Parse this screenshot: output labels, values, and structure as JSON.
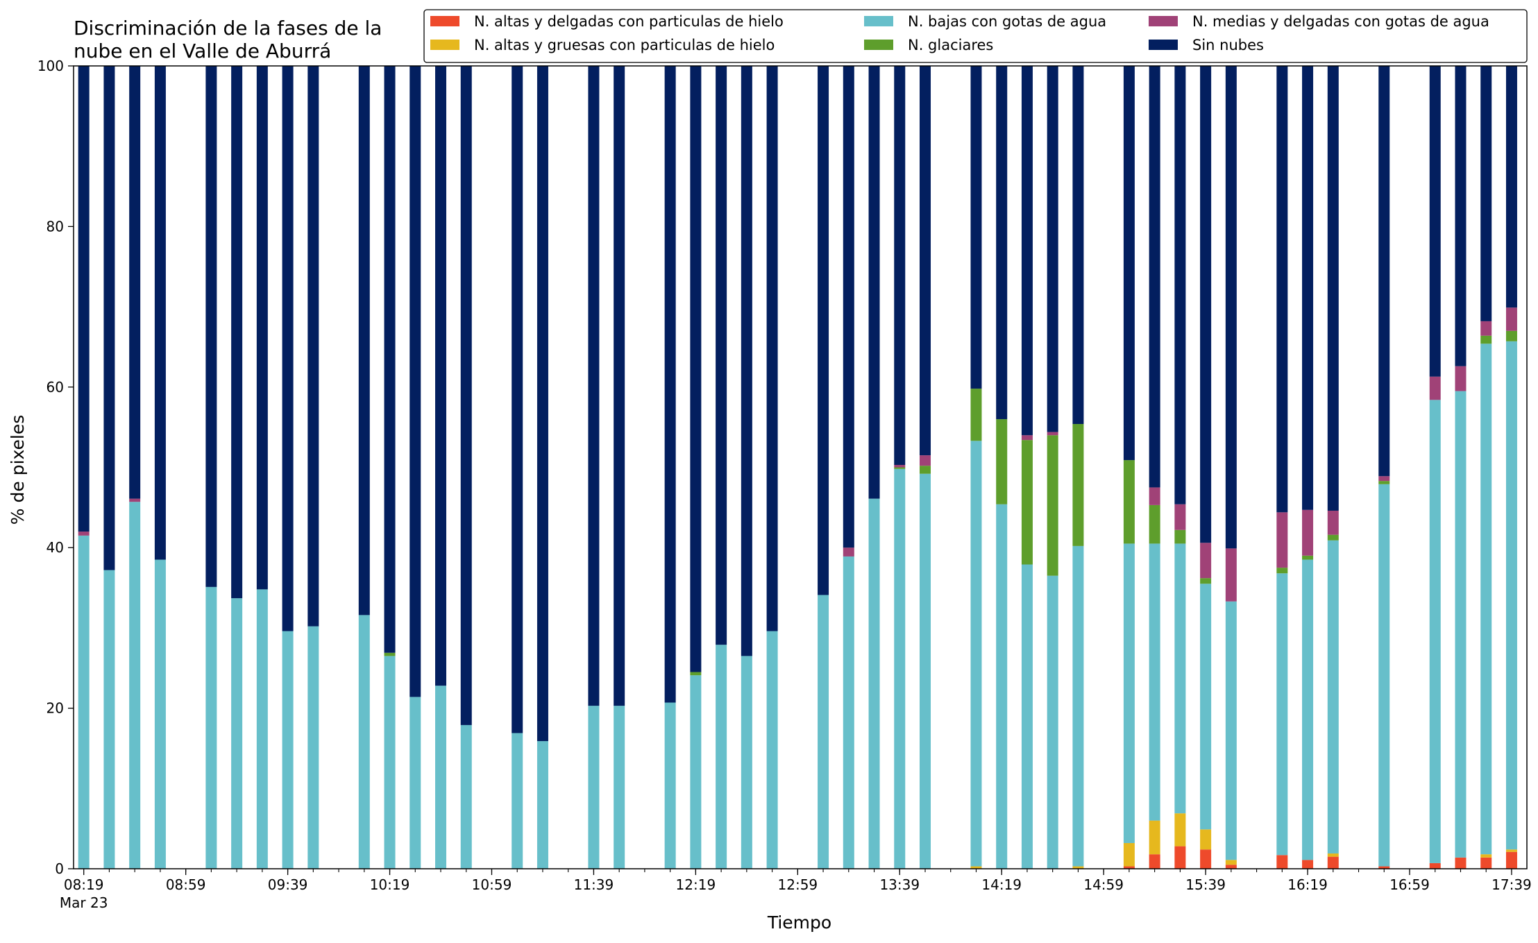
{
  "chart_data": {
    "type": "bar",
    "stacked": true,
    "title_lines": [
      "Discriminación de la fases de la",
      "nube en el Valle de Aburrá"
    ],
    "xlabel": "Tiempo",
    "ylabel": "% de pixeles",
    "ylim": [
      0,
      100
    ],
    "yticks": [
      0,
      20,
      40,
      60,
      80,
      100
    ],
    "grid": false,
    "legend_position": "top-right",
    "x_range_minutes": [
      495,
      1065
    ],
    "xticks": [
      {
        "t": 499,
        "label": "08:19",
        "sublabel": "Mar 23"
      },
      {
        "t": 539,
        "label": "08:59",
        "sublabel": ""
      },
      {
        "t": 579,
        "label": "09:39",
        "sublabel": ""
      },
      {
        "t": 619,
        "label": "10:19",
        "sublabel": ""
      },
      {
        "t": 659,
        "label": "10:59",
        "sublabel": ""
      },
      {
        "t": 699,
        "label": "11:39",
        "sublabel": ""
      },
      {
        "t": 739,
        "label": "12:19",
        "sublabel": ""
      },
      {
        "t": 779,
        "label": "12:59",
        "sublabel": ""
      },
      {
        "t": 819,
        "label": "13:39",
        "sublabel": ""
      },
      {
        "t": 859,
        "label": "14:19",
        "sublabel": ""
      },
      {
        "t": 899,
        "label": "14:59",
        "sublabel": ""
      },
      {
        "t": 939,
        "label": "15:39",
        "sublabel": ""
      },
      {
        "t": 979,
        "label": "16:19",
        "sublabel": ""
      },
      {
        "t": 1019,
        "label": "16:59",
        "sublabel": ""
      },
      {
        "t": 1059,
        "label": "17:39",
        "sublabel": ""
      }
    ],
    "series": [
      {
        "name": "N. altas y delgadas con particulas de hielo",
        "color": "#ee4a2b"
      },
      {
        "name": "N. altas y gruesas con particulas de hielo",
        "color": "#e6b81e"
      },
      {
        "name": "N. bajas con gotas de agua",
        "color": "#67bfca"
      },
      {
        "name": "N. glaciares",
        "color": "#5e9e2c"
      },
      {
        "name": "N. medias y delgadas con gotas de agua",
        "color": "#a04277"
      },
      {
        "name": "Sin nubes",
        "color": "#031f5f"
      }
    ],
    "legend_columns": [
      [
        0,
        1
      ],
      [
        2,
        3
      ],
      [
        4,
        5
      ]
    ],
    "bars": [
      {
        "t": 499,
        "v": [
          0,
          0,
          41.5,
          0,
          0.5,
          58
        ]
      },
      {
        "t": 509,
        "v": [
          0,
          0,
          37.2,
          0,
          0,
          62.8
        ]
      },
      {
        "t": 519,
        "v": [
          0,
          0,
          45.7,
          0,
          0.4,
          53.9
        ]
      },
      {
        "t": 529,
        "v": [
          0,
          0,
          38.5,
          0,
          0,
          61.5
        ]
      },
      {
        "t": 549,
        "v": [
          0,
          0,
          35.1,
          0,
          0,
          64.9
        ]
      },
      {
        "t": 559,
        "v": [
          0,
          0,
          33.7,
          0,
          0,
          66.3
        ]
      },
      {
        "t": 569,
        "v": [
          0,
          0,
          34.8,
          0,
          0,
          65.2
        ]
      },
      {
        "t": 579,
        "v": [
          0,
          0,
          29.6,
          0,
          0,
          70.4
        ]
      },
      {
        "t": 589,
        "v": [
          0,
          0,
          30.2,
          0,
          0,
          69.8
        ]
      },
      {
        "t": 609,
        "v": [
          0,
          0,
          31.6,
          0,
          0,
          68.4
        ]
      },
      {
        "t": 619,
        "v": [
          0,
          0,
          26.5,
          0.4,
          0,
          73.1
        ]
      },
      {
        "t": 629,
        "v": [
          0,
          0,
          21.4,
          0,
          0,
          78.6
        ]
      },
      {
        "t": 639,
        "v": [
          0,
          0,
          22.8,
          0,
          0,
          77.2
        ]
      },
      {
        "t": 649,
        "v": [
          0,
          0,
          17.9,
          0,
          0,
          82.1
        ]
      },
      {
        "t": 669,
        "v": [
          0,
          0,
          16.9,
          0,
          0,
          83.1
        ]
      },
      {
        "t": 679,
        "v": [
          0,
          0,
          15.9,
          0,
          0,
          84.1
        ]
      },
      {
        "t": 699,
        "v": [
          0,
          0,
          20.3,
          0,
          0,
          79.7
        ]
      },
      {
        "t": 709,
        "v": [
          0,
          0,
          20.3,
          0,
          0,
          79.7
        ]
      },
      {
        "t": 729,
        "v": [
          0,
          0,
          20.7,
          0,
          0,
          79.3
        ]
      },
      {
        "t": 739,
        "v": [
          0,
          0,
          24.1,
          0.4,
          0,
          75.5
        ]
      },
      {
        "t": 749,
        "v": [
          0,
          0,
          27.9,
          0,
          0,
          72.1
        ]
      },
      {
        "t": 759,
        "v": [
          0,
          0,
          26.5,
          0,
          0,
          73.5
        ]
      },
      {
        "t": 769,
        "v": [
          0,
          0,
          29.6,
          0,
          0,
          70.4
        ]
      },
      {
        "t": 789,
        "v": [
          0,
          0,
          34.1,
          0,
          0,
          65.9
        ]
      },
      {
        "t": 799,
        "v": [
          0,
          0,
          38.9,
          0,
          1.1,
          60
        ]
      },
      {
        "t": 809,
        "v": [
          0,
          0,
          46.1,
          0,
          0,
          53.9
        ]
      },
      {
        "t": 819,
        "v": [
          0,
          0,
          49.8,
          0.2,
          0.3,
          49.7
        ]
      },
      {
        "t": 829,
        "v": [
          0,
          0,
          49.2,
          1,
          1.3,
          48.5
        ]
      },
      {
        "t": 849,
        "v": [
          0,
          0.3,
          53,
          6.5,
          0,
          40.2
        ]
      },
      {
        "t": 859,
        "v": [
          0,
          0,
          45.4,
          10.6,
          0,
          44
        ]
      },
      {
        "t": 869,
        "v": [
          0,
          0,
          37.9,
          15.5,
          0.6,
          46
        ]
      },
      {
        "t": 879,
        "v": [
          0,
          0,
          36.5,
          17.5,
          0.4,
          45.6
        ]
      },
      {
        "t": 889,
        "v": [
          0,
          0.3,
          39.9,
          15.2,
          0,
          44.6
        ]
      },
      {
        "t": 909,
        "v": [
          0.3,
          2.9,
          37.3,
          10.4,
          0,
          49.1
        ]
      },
      {
        "t": 919,
        "v": [
          1.8,
          4.2,
          34.5,
          4.8,
          2.2,
          52.5
        ]
      },
      {
        "t": 929,
        "v": [
          2.8,
          4.1,
          33.6,
          1.7,
          3.2,
          54.6
        ]
      },
      {
        "t": 939,
        "v": [
          2.4,
          2.5,
          30.6,
          0.7,
          4.4,
          59.4
        ]
      },
      {
        "t": 949,
        "v": [
          0.5,
          0.6,
          32.2,
          0,
          6.6,
          60.1
        ]
      },
      {
        "t": 969,
        "v": [
          1.7,
          0,
          35.1,
          0.7,
          6.9,
          55.6
        ]
      },
      {
        "t": 979,
        "v": [
          1.1,
          0,
          37.4,
          0.5,
          5.7,
          55.3
        ]
      },
      {
        "t": 989,
        "v": [
          1.5,
          0.4,
          39,
          0.7,
          3,
          55.4
        ]
      },
      {
        "t": 1009,
        "v": [
          0.3,
          0,
          47.6,
          0.4,
          0.6,
          51.1
        ]
      },
      {
        "t": 1029,
        "v": [
          0.7,
          0,
          57.7,
          0,
          2.9,
          38.7
        ]
      },
      {
        "t": 1039,
        "v": [
          1.4,
          0,
          58.1,
          0,
          3.1,
          37.4
        ]
      },
      {
        "t": 1049,
        "v": [
          1.4,
          0.4,
          63.6,
          1,
          1.8,
          31.8
        ]
      },
      {
        "t": 1059,
        "v": [
          2.1,
          0.3,
          63.3,
          1.3,
          2.9,
          30.1
        ]
      }
    ]
  }
}
